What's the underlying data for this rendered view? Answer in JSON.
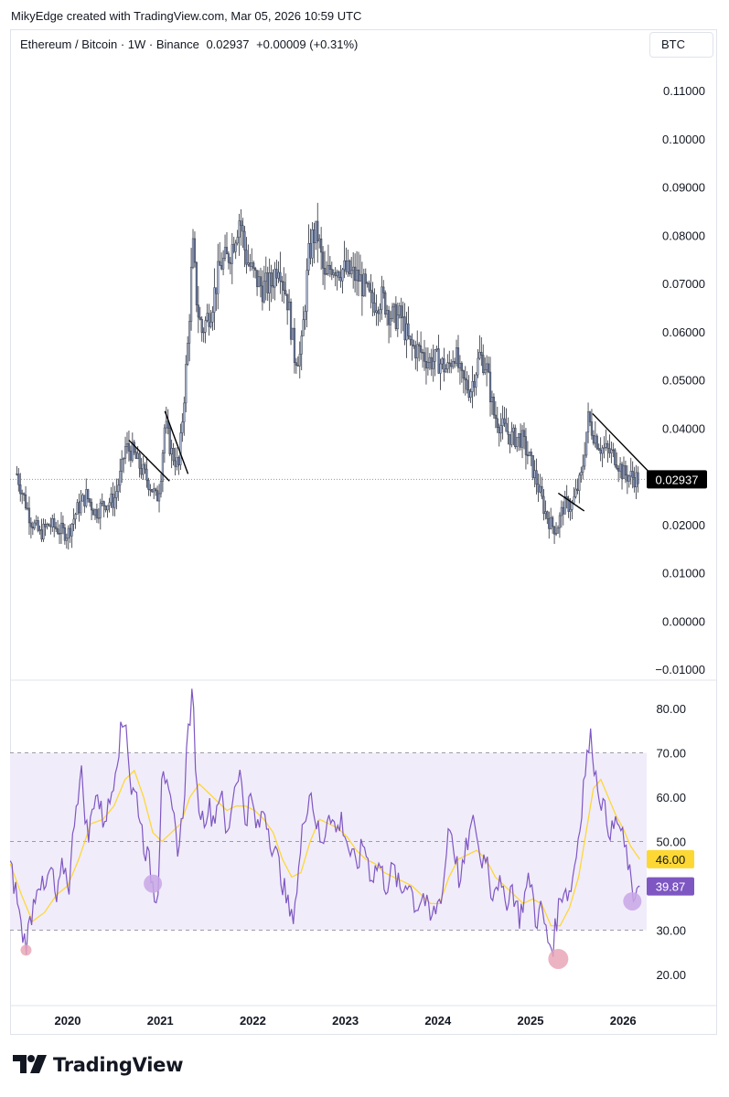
{
  "header": {
    "text": "MikyEdge created with TradingView.com, Mar 05, 2026 10:59 UTC"
  },
  "symbol": {
    "name": "Ethereum / Bitcoin · 1W · Binance",
    "price": "0.02937",
    "change": "+0.00009 (+0.31%)"
  },
  "currency_button": "BTC",
  "colors": {
    "candle": "#6a7a9e",
    "candle_dark": "#2a2e39",
    "rsi_line": "#7e57c2",
    "rsi_ma": "#fdd835",
    "rsi_band": "#f1ecfa",
    "marker_purple": "#c9a7e6",
    "marker_pink": "#e9a7b8",
    "price_tag_bg": "#000000"
  },
  "footer": {
    "brand": "TradingView"
  },
  "chart_data": [
    {
      "type": "candlestick",
      "series_name": "Ethereum / Bitcoin",
      "y_ticks": [
        "0.11000",
        "0.10000",
        "0.09000",
        "0.08000",
        "0.07000",
        "0.06000",
        "0.05000",
        "0.04000",
        "0.03000",
        "0.02000",
        "0.01000",
        "0.00000",
        "−0.01000"
      ],
      "ylim": [
        -0.01,
        0.11
      ],
      "x_ticks": [
        "2020",
        "2021",
        "2022",
        "2023",
        "2024",
        "2025",
        "2026"
      ],
      "last_price": 0.02937,
      "last_price_label": "0.02937",
      "close_path": [
        [
          2019.45,
          0.0305
        ],
        [
          2019.52,
          0.026
        ],
        [
          2019.6,
          0.021
        ],
        [
          2019.7,
          0.018
        ],
        [
          2019.8,
          0.02
        ],
        [
          2019.9,
          0.019
        ],
        [
          2020.0,
          0.018
        ],
        [
          2020.1,
          0.023
        ],
        [
          2020.2,
          0.026
        ],
        [
          2020.3,
          0.0225
        ],
        [
          2020.4,
          0.0245
        ],
        [
          2020.5,
          0.025
        ],
        [
          2020.58,
          0.031
        ],
        [
          2020.62,
          0.036
        ],
        [
          2020.7,
          0.035
        ],
        [
          2020.78,
          0.032
        ],
        [
          2020.9,
          0.028
        ],
        [
          2020.96,
          0.025
        ],
        [
          2021.0,
          0.029
        ],
        [
          2021.05,
          0.041
        ],
        [
          2021.12,
          0.035
        ],
        [
          2021.2,
          0.032
        ],
        [
          2021.25,
          0.045
        ],
        [
          2021.3,
          0.058
        ],
        [
          2021.35,
          0.078
        ],
        [
          2021.4,
          0.065
        ],
        [
          2021.45,
          0.06
        ],
        [
          2021.55,
          0.065
        ],
        [
          2021.65,
          0.074
        ],
        [
          2021.72,
          0.075
        ],
        [
          2021.78,
          0.078
        ],
        [
          2021.86,
          0.084
        ],
        [
          2021.92,
          0.076
        ],
        [
          2022.0,
          0.072
        ],
        [
          2022.1,
          0.069
        ],
        [
          2022.2,
          0.07
        ],
        [
          2022.28,
          0.075
        ],
        [
          2022.38,
          0.066
        ],
        [
          2022.45,
          0.055
        ],
        [
          2022.52,
          0.055
        ],
        [
          2022.6,
          0.075
        ],
        [
          2022.65,
          0.08
        ],
        [
          2022.7,
          0.08
        ],
        [
          2022.78,
          0.07
        ],
        [
          2022.85,
          0.074
        ],
        [
          2022.95,
          0.073
        ],
        [
          2023.05,
          0.072
        ],
        [
          2023.15,
          0.071
        ],
        [
          2023.28,
          0.066
        ],
        [
          2023.4,
          0.067
        ],
        [
          2023.5,
          0.063
        ],
        [
          2023.6,
          0.063
        ],
        [
          2023.7,
          0.057
        ],
        [
          2023.8,
          0.056
        ],
        [
          2023.9,
          0.054
        ],
        [
          2024.0,
          0.054
        ],
        [
          2024.1,
          0.052
        ],
        [
          2024.18,
          0.056
        ],
        [
          2024.25,
          0.05
        ],
        [
          2024.35,
          0.048
        ],
        [
          2024.45,
          0.055
        ],
        [
          2024.52,
          0.053
        ],
        [
          2024.6,
          0.043
        ],
        [
          2024.7,
          0.04
        ],
        [
          2024.8,
          0.038
        ],
        [
          2024.9,
          0.038
        ],
        [
          2025.0,
          0.033
        ],
        [
          2025.08,
          0.028
        ],
        [
          2025.15,
          0.023
        ],
        [
          2025.22,
          0.02
        ],
        [
          2025.28,
          0.019
        ],
        [
          2025.36,
          0.024
        ],
        [
          2025.45,
          0.024
        ],
        [
          2025.55,
          0.03
        ],
        [
          2025.62,
          0.042
        ],
        [
          2025.68,
          0.039
        ],
        [
          2025.76,
          0.036
        ],
        [
          2025.85,
          0.035
        ],
        [
          2025.92,
          0.034
        ],
        [
          2026.0,
          0.0305
        ],
        [
          2026.08,
          0.03
        ],
        [
          2026.17,
          0.0294
        ]
      ],
      "trendlines": [
        {
          "from": [
            2020.66,
            0.0375
          ],
          "to": [
            2021.1,
            0.029
          ]
        },
        {
          "from": [
            2021.05,
            0.0435
          ],
          "to": [
            2021.3,
            0.0305
          ]
        },
        {
          "from": [
            2025.3,
            0.0265
          ],
          "to": [
            2025.58,
            0.0228
          ]
        },
        {
          "from": [
            2025.67,
            0.043
          ],
          "to": [
            2026.3,
            0.0305
          ]
        }
      ]
    },
    {
      "type": "line",
      "indicator": "RSI",
      "y_ticks": [
        "80.00",
        "70.00",
        "60.00",
        "50.00",
        "30.00",
        "20.00"
      ],
      "ylim": [
        15,
        85
      ],
      "band": [
        30,
        70
      ],
      "mid": 50,
      "rsi_label": "39.87",
      "ma_label": "46.00",
      "rsi_value": 39.87,
      "ma_value": 46.0,
      "rsi": [
        [
          2019.38,
          44
        ],
        [
          2019.45,
          38
        ],
        [
          2019.5,
          30
        ],
        [
          2019.55,
          27
        ],
        [
          2019.62,
          35
        ],
        [
          2019.68,
          42
        ],
        [
          2019.75,
          38
        ],
        [
          2019.82,
          44
        ],
        [
          2019.88,
          36
        ],
        [
          2019.95,
          45
        ],
        [
          2020.02,
          40
        ],
        [
          2020.08,
          58
        ],
        [
          2020.15,
          65
        ],
        [
          2020.22,
          50
        ],
        [
          2020.3,
          62
        ],
        [
          2020.38,
          55
        ],
        [
          2020.45,
          58
        ],
        [
          2020.52,
          68
        ],
        [
          2020.58,
          75
        ],
        [
          2020.63,
          78
        ],
        [
          2020.68,
          62
        ],
        [
          2020.75,
          60
        ],
        [
          2020.82,
          50
        ],
        [
          2020.88,
          45
        ],
        [
          2020.94,
          38
        ],
        [
          2020.98,
          40
        ],
        [
          2021.02,
          70
        ],
        [
          2021.08,
          60
        ],
        [
          2021.14,
          55
        ],
        [
          2021.2,
          48
        ],
        [
          2021.25,
          58
        ],
        [
          2021.3,
          75
        ],
        [
          2021.35,
          83
        ],
        [
          2021.4,
          60
        ],
        [
          2021.46,
          55
        ],
        [
          2021.52,
          58
        ],
        [
          2021.58,
          55
        ],
        [
          2021.65,
          62
        ],
        [
          2021.72,
          50
        ],
        [
          2021.78,
          60
        ],
        [
          2021.85,
          67
        ],
        [
          2021.92,
          55
        ],
        [
          2021.98,
          60
        ],
        [
          2022.05,
          52
        ],
        [
          2022.12,
          58
        ],
        [
          2022.2,
          50
        ],
        [
          2022.28,
          45
        ],
        [
          2022.35,
          38
        ],
        [
          2022.42,
          32
        ],
        [
          2022.48,
          40
        ],
        [
          2022.55,
          55
        ],
        [
          2022.62,
          62
        ],
        [
          2022.68,
          55
        ],
        [
          2022.75,
          48
        ],
        [
          2022.82,
          58
        ],
        [
          2022.9,
          52
        ],
        [
          2022.96,
          55
        ],
        [
          2023.04,
          48
        ],
        [
          2023.12,
          44
        ],
        [
          2023.2,
          50
        ],
        [
          2023.28,
          42
        ],
        [
          2023.36,
          45
        ],
        [
          2023.44,
          40
        ],
        [
          2023.52,
          44
        ],
        [
          2023.6,
          38
        ],
        [
          2023.68,
          42
        ],
        [
          2023.76,
          35
        ],
        [
          2023.84,
          38
        ],
        [
          2023.92,
          32
        ],
        [
          2024.0,
          36
        ],
        [
          2024.06,
          40
        ],
        [
          2024.12,
          55
        ],
        [
          2024.18,
          48
        ],
        [
          2024.24,
          40
        ],
        [
          2024.32,
          50
        ],
        [
          2024.4,
          55
        ],
        [
          2024.46,
          45
        ],
        [
          2024.52,
          48
        ],
        [
          2024.58,
          38
        ],
        [
          2024.64,
          42
        ],
        [
          2024.72,
          36
        ],
        [
          2024.8,
          40
        ],
        [
          2024.88,
          33
        ],
        [
          2024.94,
          38
        ],
        [
          2025.0,
          42
        ],
        [
          2025.06,
          32
        ],
        [
          2025.12,
          35
        ],
        [
          2025.18,
          28
        ],
        [
          2025.24,
          26
        ],
        [
          2025.3,
          35
        ],
        [
          2025.36,
          40
        ],
        [
          2025.42,
          38
        ],
        [
          2025.48,
          45
        ],
        [
          2025.54,
          55
        ],
        [
          2025.58,
          65
        ],
        [
          2025.62,
          70
        ],
        [
          2025.66,
          74
        ],
        [
          2025.7,
          65
        ],
        [
          2025.76,
          60
        ],
        [
          2025.82,
          55
        ],
        [
          2025.88,
          52
        ],
        [
          2025.94,
          55
        ],
        [
          2026.0,
          50
        ],
        [
          2026.06,
          45
        ],
        [
          2026.1,
          36
        ],
        [
          2026.14,
          40
        ],
        [
          2026.18,
          39.87
        ]
      ],
      "rsi_ma": [
        [
          2019.38,
          45
        ],
        [
          2019.5,
          38
        ],
        [
          2019.62,
          32
        ],
        [
          2019.75,
          34
        ],
        [
          2019.88,
          38
        ],
        [
          2020.0,
          40
        ],
        [
          2020.12,
          46
        ],
        [
          2020.25,
          54
        ],
        [
          2020.38,
          55
        ],
        [
          2020.5,
          58
        ],
        [
          2020.62,
          64
        ],
        [
          2020.72,
          66
        ],
        [
          2020.82,
          60
        ],
        [
          2020.92,
          52
        ],
        [
          2021.02,
          50
        ],
        [
          2021.12,
          52
        ],
        [
          2021.22,
          54
        ],
        [
          2021.32,
          60
        ],
        [
          2021.42,
          63
        ],
        [
          2021.52,
          61
        ],
        [
          2021.62,
          59
        ],
        [
          2021.72,
          57
        ],
        [
          2021.82,
          58
        ],
        [
          2021.92,
          58
        ],
        [
          2022.02,
          57
        ],
        [
          2022.12,
          55
        ],
        [
          2022.22,
          52
        ],
        [
          2022.32,
          46
        ],
        [
          2022.42,
          42
        ],
        [
          2022.52,
          43
        ],
        [
          2022.62,
          50
        ],
        [
          2022.72,
          55
        ],
        [
          2022.82,
          54
        ],
        [
          2022.92,
          53
        ],
        [
          2023.02,
          51
        ],
        [
          2023.12,
          48
        ],
        [
          2023.22,
          46
        ],
        [
          2023.32,
          45
        ],
        [
          2023.42,
          43
        ],
        [
          2023.52,
          42
        ],
        [
          2023.62,
          41
        ],
        [
          2023.72,
          40
        ],
        [
          2023.82,
          38
        ],
        [
          2023.92,
          36
        ],
        [
          2024.02,
          36
        ],
        [
          2024.12,
          42
        ],
        [
          2024.22,
          46
        ],
        [
          2024.32,
          47
        ],
        [
          2024.42,
          48
        ],
        [
          2024.52,
          46
        ],
        [
          2024.62,
          42
        ],
        [
          2024.72,
          40
        ],
        [
          2024.82,
          38
        ],
        [
          2024.92,
          36
        ],
        [
          2025.02,
          37
        ],
        [
          2025.12,
          36
        ],
        [
          2025.22,
          31
        ],
        [
          2025.32,
          31
        ],
        [
          2025.42,
          35
        ],
        [
          2025.52,
          42
        ],
        [
          2025.6,
          52
        ],
        [
          2025.68,
          62
        ],
        [
          2025.76,
          64
        ],
        [
          2025.84,
          60
        ],
        [
          2025.92,
          56
        ],
        [
          2026.0,
          53
        ],
        [
          2026.08,
          49
        ],
        [
          2026.18,
          46
        ]
      ],
      "markers": [
        {
          "x": 2019.55,
          "y": 25.5,
          "r": 6,
          "color": "pink"
        },
        {
          "x": 2020.92,
          "y": 40.5,
          "r": 10,
          "color": "purple"
        },
        {
          "x": 2025.3,
          "y": 23.5,
          "r": 11,
          "color": "pink"
        },
        {
          "x": 2026.1,
          "y": 36.5,
          "r": 10,
          "color": "purple"
        }
      ]
    }
  ]
}
